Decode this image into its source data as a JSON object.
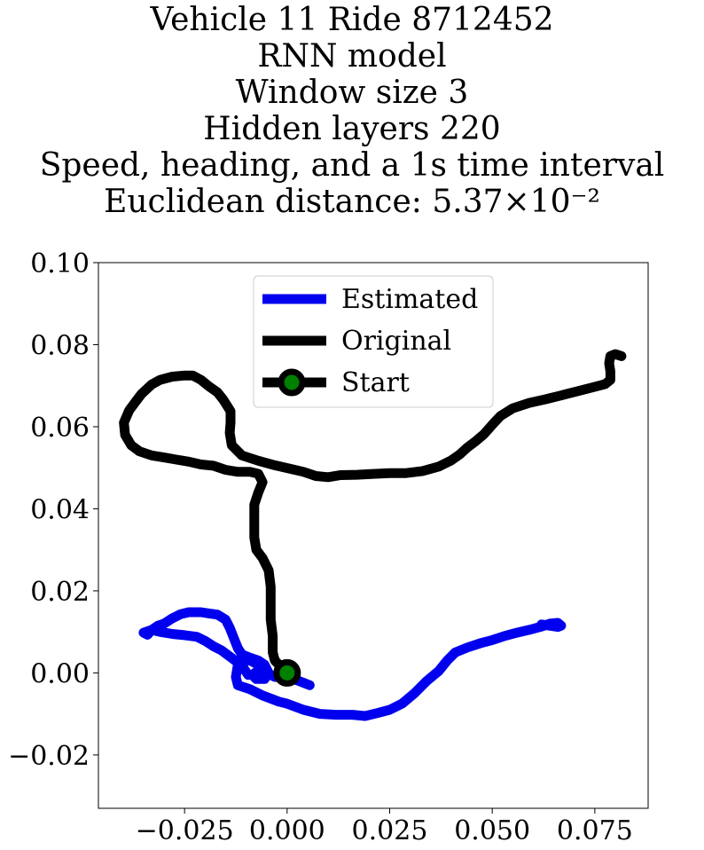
{
  "chart_data": {
    "type": "line",
    "title_lines": [
      "Vehicle 11 Ride 8712452",
      "RNN model",
      "Window size 3",
      "Hidden layers 220",
      "Speed, heading, and a 1s time interval",
      "Euclidean distance: 5.37×10⁻²"
    ],
    "xlim": [
      -0.046,
      0.088
    ],
    "ylim": [
      -0.033,
      0.1
    ],
    "x_ticks": [
      -0.025,
      0.0,
      0.025,
      0.05,
      0.075
    ],
    "x_tick_labels": [
      "−0.025",
      "0.000",
      "0.025",
      "0.050",
      "0.075"
    ],
    "y_ticks": [
      -0.02,
      0.0,
      0.02,
      0.04,
      0.06,
      0.08,
      0.1
    ],
    "y_tick_labels": [
      "−0.02",
      "0.00",
      "0.02",
      "0.04",
      "0.06",
      "0.08",
      "0.10"
    ],
    "grid": false,
    "legend_position": "top-center",
    "series": [
      {
        "name": "Estimated",
        "color": "#0000ee",
        "points": [
          [
            0.0055,
            -0.003
          ],
          [
            0.003,
            -0.002
          ],
          [
            0.0,
            -0.001
          ],
          [
            -0.003,
            -0.001
          ],
          [
            -0.005,
            0.0
          ],
          [
            -0.007,
            0.002
          ],
          [
            -0.009,
            0.003
          ],
          [
            -0.011,
            0.003
          ],
          [
            -0.012,
            0.002
          ],
          [
            -0.0125,
            -0.001
          ],
          [
            -0.012,
            -0.003
          ],
          [
            -0.009,
            -0.004
          ],
          [
            -0.006,
            -0.0055
          ],
          [
            -0.002,
            -0.007
          ],
          [
            0.0,
            -0.0075
          ],
          [
            0.004,
            -0.009
          ],
          [
            0.008,
            -0.01
          ],
          [
            0.012,
            -0.0102
          ],
          [
            0.016,
            -0.0102
          ],
          [
            0.019,
            -0.0105
          ],
          [
            0.022,
            -0.0098
          ],
          [
            0.025,
            -0.009
          ],
          [
            0.028,
            -0.0075
          ],
          [
            0.031,
            -0.005
          ],
          [
            0.034,
            -0.002
          ],
          [
            0.037,
            0.0005
          ],
          [
            0.039,
            0.003
          ],
          [
            0.041,
            0.005
          ],
          [
            0.044,
            0.0062
          ],
          [
            0.047,
            0.0072
          ],
          [
            0.05,
            0.008
          ],
          [
            0.053,
            0.009
          ],
          [
            0.056,
            0.0098
          ],
          [
            0.059,
            0.0105
          ],
          [
            0.062,
            0.0113
          ],
          [
            0.064,
            0.012
          ],
          [
            0.066,
            0.0122
          ],
          [
            0.0668,
            0.0115
          ],
          [
            0.066,
            0.0112
          ],
          [
            0.064,
            0.0115
          ],
          [
            0.062,
            0.0118
          ]
        ]
      },
      {
        "name": "Estimated",
        "color": "#0000ee",
        "points": [
          [
            -0.0095,
            -0.0005
          ],
          [
            -0.0105,
            0.001
          ],
          [
            -0.012,
            0.0025
          ],
          [
            -0.014,
            0.004
          ],
          [
            -0.016,
            0.0055
          ],
          [
            -0.018,
            0.0065
          ],
          [
            -0.02,
            0.0078
          ],
          [
            -0.022,
            0.0088
          ],
          [
            -0.025,
            0.0092
          ],
          [
            -0.028,
            0.0095
          ],
          [
            -0.031,
            0.01
          ],
          [
            -0.033,
            0.0105
          ],
          [
            -0.035,
            0.0098
          ],
          [
            -0.034,
            0.0093
          ],
          [
            -0.033,
            0.0105
          ],
          [
            -0.0315,
            0.0115
          ],
          [
            -0.03,
            0.012
          ],
          [
            -0.028,
            0.0133
          ],
          [
            -0.026,
            0.0143
          ],
          [
            -0.024,
            0.0148
          ],
          [
            -0.021,
            0.0148
          ],
          [
            -0.019,
            0.0145
          ],
          [
            -0.017,
            0.0142
          ],
          [
            -0.015,
            0.013
          ],
          [
            -0.014,
            0.011
          ],
          [
            -0.013,
            0.0085
          ],
          [
            -0.012,
            0.006
          ],
          [
            -0.011,
            0.0045
          ],
          [
            -0.009,
            0.0037
          ],
          [
            -0.007,
            0.003
          ],
          [
            -0.0055,
            0.002
          ],
          [
            -0.0045,
            0.0
          ],
          [
            -0.0055,
            -0.0015
          ],
          [
            -0.0075,
            -0.0015
          ],
          [
            -0.0085,
            -0.0005
          ],
          [
            -0.007,
            0.0006
          ],
          [
            -0.005,
            0.0003
          ]
        ]
      },
      {
        "name": "Original",
        "color": "#000000",
        "points": [
          [
            0.0,
            0.0
          ],
          [
            -0.001,
            0.001
          ],
          [
            -0.003,
            0.003
          ],
          [
            -0.0035,
            0.005
          ],
          [
            -0.0035,
            0.009
          ],
          [
            -0.004,
            0.013
          ],
          [
            -0.004,
            0.017
          ],
          [
            -0.004,
            0.021
          ],
          [
            -0.0045,
            0.025
          ],
          [
            -0.006,
            0.028
          ],
          [
            -0.0075,
            0.03
          ],
          [
            -0.008,
            0.033
          ],
          [
            -0.008,
            0.037
          ],
          [
            -0.008,
            0.041
          ],
          [
            -0.007,
            0.044
          ],
          [
            -0.006,
            0.0465
          ],
          [
            -0.007,
            0.0485
          ],
          [
            -0.009,
            0.049
          ],
          [
            -0.012,
            0.049
          ],
          [
            -0.015,
            0.0495
          ],
          [
            -0.018,
            0.0505
          ],
          [
            -0.021,
            0.0508
          ],
          [
            -0.024,
            0.0515
          ],
          [
            -0.027,
            0.052
          ],
          [
            -0.03,
            0.0525
          ],
          [
            -0.033,
            0.053
          ],
          [
            -0.036,
            0.054
          ],
          [
            -0.038,
            0.0555
          ],
          [
            -0.0395,
            0.058
          ],
          [
            -0.0398,
            0.061
          ],
          [
            -0.0385,
            0.064
          ],
          [
            -0.037,
            0.066
          ],
          [
            -0.0355,
            0.068
          ],
          [
            -0.033,
            0.0703
          ],
          [
            -0.031,
            0.0714
          ],
          [
            -0.028,
            0.0722
          ],
          [
            -0.025,
            0.0725
          ],
          [
            -0.023,
            0.0725
          ],
          [
            -0.021,
            0.0714
          ],
          [
            -0.019,
            0.0698
          ],
          [
            -0.017,
            0.0684
          ],
          [
            -0.0155,
            0.0665
          ],
          [
            -0.0138,
            0.0638
          ],
          [
            -0.0138,
            0.061
          ],
          [
            -0.014,
            0.0585
          ],
          [
            -0.0135,
            0.0555
          ],
          [
            -0.011,
            0.053
          ],
          [
            -0.007,
            0.0517
          ],
          [
            -0.003,
            0.0506
          ],
          [
            0.001,
            0.0497
          ],
          [
            0.004,
            0.049
          ],
          [
            0.007,
            0.048
          ],
          [
            0.01,
            0.0477
          ],
          [
            0.013,
            0.0482
          ],
          [
            0.017,
            0.0483
          ],
          [
            0.021,
            0.0485
          ],
          [
            0.025,
            0.0487
          ],
          [
            0.029,
            0.0487
          ],
          [
            0.033,
            0.0492
          ],
          [
            0.037,
            0.0503
          ],
          [
            0.04,
            0.0518
          ],
          [
            0.042,
            0.0532
          ],
          [
            0.044,
            0.055
          ],
          [
            0.046,
            0.0565
          ],
          [
            0.048,
            0.0582
          ],
          [
            0.05,
            0.0605
          ],
          [
            0.052,
            0.0626
          ],
          [
            0.055,
            0.0645
          ],
          [
            0.059,
            0.0658
          ],
          [
            0.063,
            0.0667
          ],
          [
            0.067,
            0.0677
          ],
          [
            0.071,
            0.0687
          ],
          [
            0.0745,
            0.0696
          ],
          [
            0.0775,
            0.0704
          ],
          [
            0.0788,
            0.0714
          ],
          [
            0.0788,
            0.0735
          ],
          [
            0.0785,
            0.0755
          ],
          [
            0.0788,
            0.0772
          ],
          [
            0.08,
            0.0777
          ],
          [
            0.0815,
            0.0772
          ]
        ]
      }
    ],
    "start_point": {
      "label": "Start",
      "x": 0.0,
      "y": 0.0,
      "marker_color": "#000000",
      "face_color": "#008000"
    },
    "legend_entries": [
      {
        "label": "Estimated",
        "color": "#0000ee",
        "kind": "line"
      },
      {
        "label": "Original",
        "color": "#000000",
        "kind": "line"
      },
      {
        "label": "Start",
        "color": "#000000",
        "kind": "line-marker",
        "face_color": "#008000"
      }
    ]
  }
}
